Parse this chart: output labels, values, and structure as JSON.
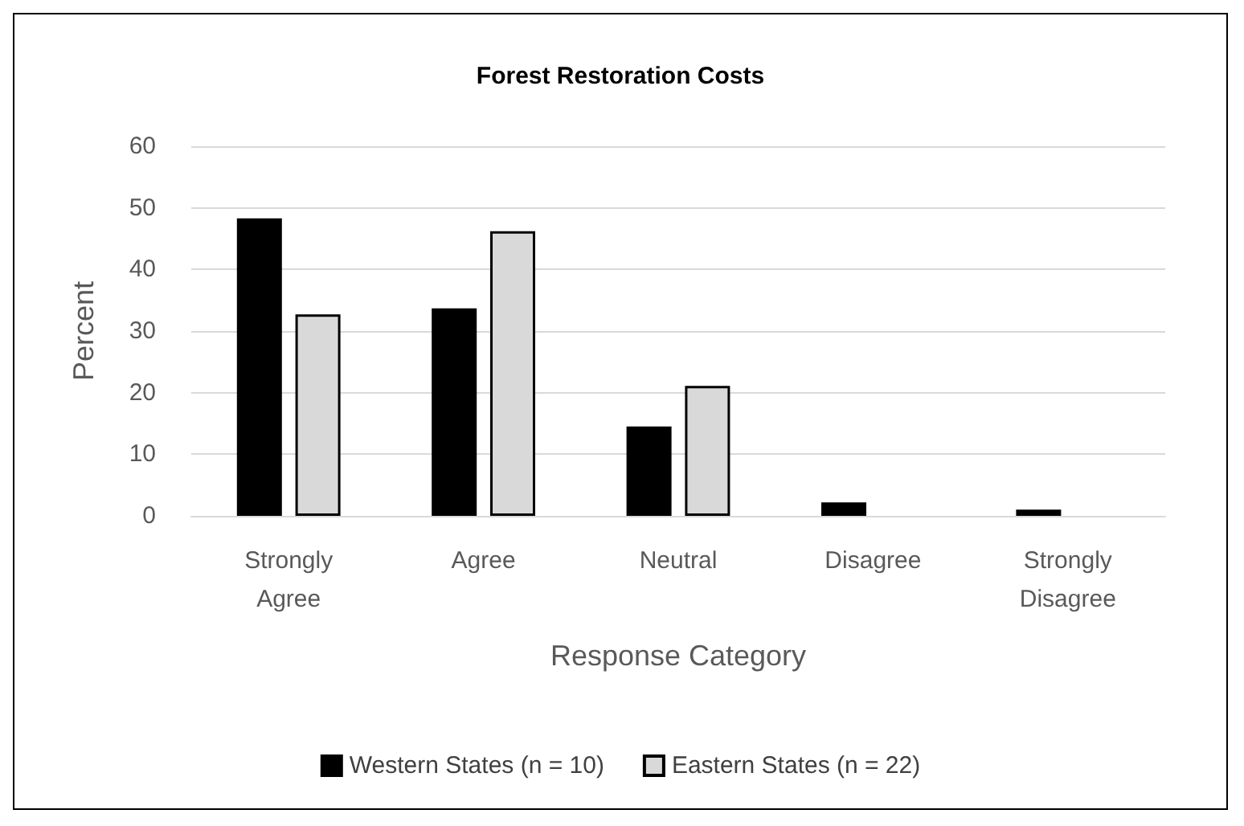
{
  "chart_data": {
    "type": "bar",
    "title": "Forest Restoration Costs",
    "xlabel": "Response Category",
    "ylabel": "Percent",
    "categories": [
      "Strongly\nAgree",
      "Agree",
      "Neutral",
      "Disagree",
      "Strongly\nDisagree"
    ],
    "series": [
      {
        "name": "Western States (n = 10)",
        "color": "#000000",
        "values": [
          48.3,
          33.7,
          14.5,
          2.2,
          1.0
        ]
      },
      {
        "name": "Eastern States (n = 22)",
        "color": "#d9d9d9",
        "values": [
          32.7,
          46.2,
          21.1,
          0,
          0
        ]
      }
    ],
    "ylim": [
      0,
      60
    ],
    "yticks": [
      0,
      10,
      20,
      30,
      40,
      50,
      60
    ],
    "grid": "y",
    "legend": "bottom"
  }
}
